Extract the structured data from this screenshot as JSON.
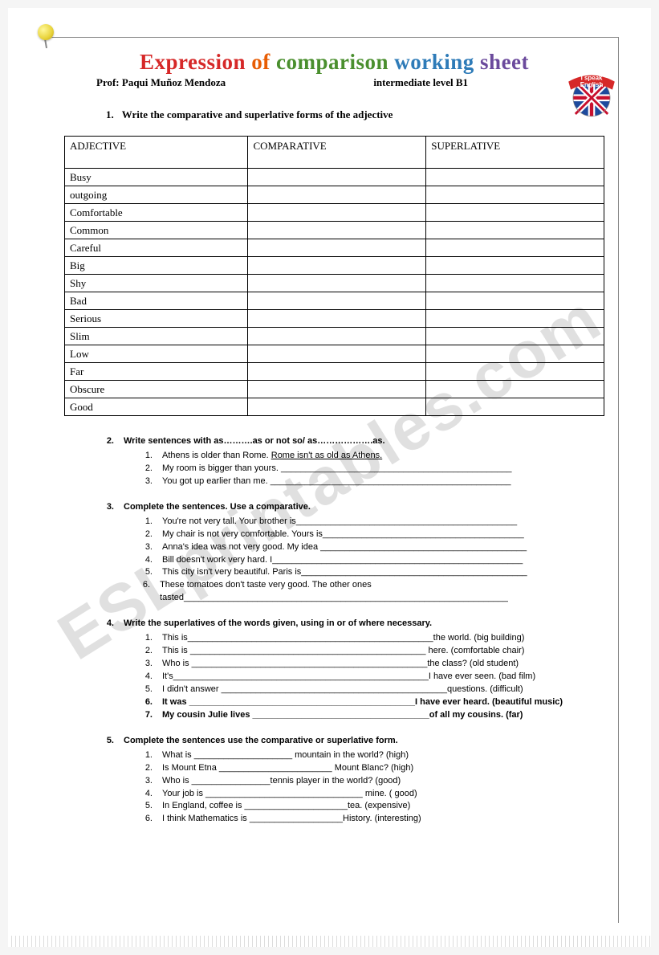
{
  "title": {
    "words": [
      {
        "text": "Expression",
        "cls": "c1"
      },
      {
        "text": "of",
        "cls": "c2"
      },
      {
        "text": "comparison",
        "cls": "c3"
      },
      {
        "text": "working",
        "cls": "c4"
      },
      {
        "text": "sheet",
        "cls": "c5"
      }
    ]
  },
  "subtitle": {
    "prof": "Prof: Paqui Muñoz Mendoza",
    "level": "intermediate level B1"
  },
  "badge": {
    "line1": "I speak",
    "line2": "English",
    "ribbon_color": "#d62828",
    "flag_blue": "#1e4a9c",
    "flag_red": "#c8102e",
    "flag_white": "#ffffff"
  },
  "q1": {
    "num": "1.",
    "text": "Write the comparative and superlative forms of the adjective",
    "table": {
      "headers": [
        "ADJECTIVE",
        "COMPARATIVE",
        "SUPERLATIVE"
      ],
      "adjectives": [
        "Busy",
        "outgoing",
        "Comfortable",
        "Common",
        "Careful",
        "Big",
        "Shy",
        "Bad",
        "Serious",
        "Slim",
        "Low",
        "Far",
        "Obscure",
        "Good"
      ]
    }
  },
  "q2": {
    "num": "2.",
    "text": "Write sentences with as……….as or not so/ as……………….as.",
    "items": [
      {
        "n": "1.",
        "t": "Athens is older than Rome. ",
        "u": "Rome isn't as old as Athens."
      },
      {
        "n": "2.",
        "t": "My room is bigger than yours. _______________________________________________"
      },
      {
        "n": "3.",
        "t": "You got up earlier than me. _________________________________________________"
      }
    ]
  },
  "q3": {
    "num": "3.",
    "text": "Complete the sentences. Use a comparative.",
    "items": [
      {
        "n": "1.",
        "t": "You're not very tall. Your brother is_____________________________________________"
      },
      {
        "n": "2.",
        "t": "My chair is not very comfortable. Yours is_________________________________________"
      },
      {
        "n": "3.",
        "t": "Anna's idea was not very good. My idea __________________________________________"
      },
      {
        "n": "4.",
        "t": "Bill doesn't work very hard. I___________________________________________________"
      },
      {
        "n": "5.",
        "t": "This city isn't very beautiful. Paris is______________________________________________"
      },
      {
        "n": "6.",
        "t": "These tomatoes don't taste very good. The other ones tasted__________________________________________________________________"
      }
    ]
  },
  "q4": {
    "num": "4.",
    "text": "Write the superlatives of the words given, using in or of where necessary.",
    "items": [
      {
        "n": "1.",
        "t": "This is__________________________________________________the world. (big building)"
      },
      {
        "n": "2.",
        "t": "This is ________________________________________________ here. (comfortable chair)"
      },
      {
        "n": "3.",
        "t": "Who is ________________________________________________the class? (old student)"
      },
      {
        "n": "4.",
        "t": "It's____________________________________________________I have ever seen. (bad film)"
      },
      {
        "n": "5.",
        "t": "I didn't answer ______________________________________________questions. (difficult)"
      },
      {
        "n": "6.",
        "t": "It was ______________________________________________I have ever heard. (beautiful music)",
        "bold": true
      },
      {
        "n": "7.",
        "t": "My cousin Julie lives ____________________________________of all my cousins. (far)",
        "bold": true
      }
    ]
  },
  "q5": {
    "num": "5.",
    "text": "Complete the sentences use the comparative or superlative form.",
    "items": [
      {
        "n": "1.",
        "t": "What is ____________________ mountain  in the world? (high)"
      },
      {
        "n": "2.",
        "t": "Is Mount Etna _______________________ Mount Blanc? (high)"
      },
      {
        "n": "3.",
        "t": "Who is ________________tennis player in the world? (good)"
      },
      {
        "n": "4.",
        "t": "Your job is ________________________________ mine. ( good)"
      },
      {
        "n": "5.",
        "t": "In England, coffee is _____________________tea. (expensive)"
      },
      {
        "n": "6.",
        "t": "I think Mathematics is ___________________History. (interesting)"
      }
    ]
  },
  "watermark": "ESLprintables.com"
}
